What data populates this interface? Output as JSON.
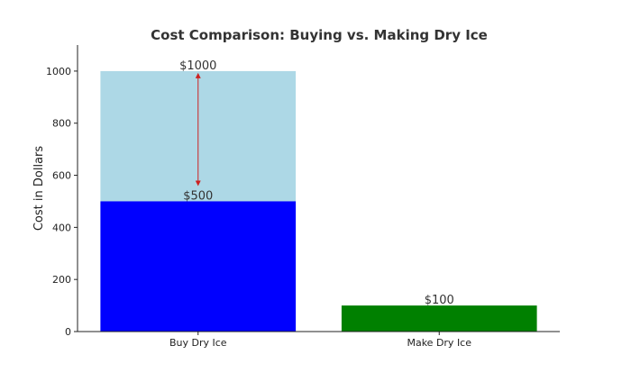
{
  "chart_data": {
    "type": "bar",
    "title": "Cost Comparison: Buying vs. Making Dry Ice",
    "xlabel": "",
    "ylabel": "Cost in Dollars",
    "ylim": [
      0,
      1100
    ],
    "yticks": [
      0,
      200,
      400,
      600,
      800,
      1000
    ],
    "categories": [
      "Buy Dry Ice",
      "Make Dry Ice"
    ],
    "bars": [
      {
        "category": "Buy Dry Ice",
        "value": 1000,
        "label": "$1000",
        "color": "#add8e6"
      },
      {
        "category": "Buy Dry Ice",
        "value": 500,
        "label": "$500",
        "color": "#0000ff"
      },
      {
        "category": "Make Dry Ice",
        "value": 100,
        "label": "$100",
        "color": "#008000"
      }
    ],
    "annotation": {
      "type": "double-arrow",
      "category": "Buy Dry Ice",
      "from": 1000,
      "to": 500,
      "color": "#cc2222"
    },
    "grid": false,
    "legend": "none"
  }
}
